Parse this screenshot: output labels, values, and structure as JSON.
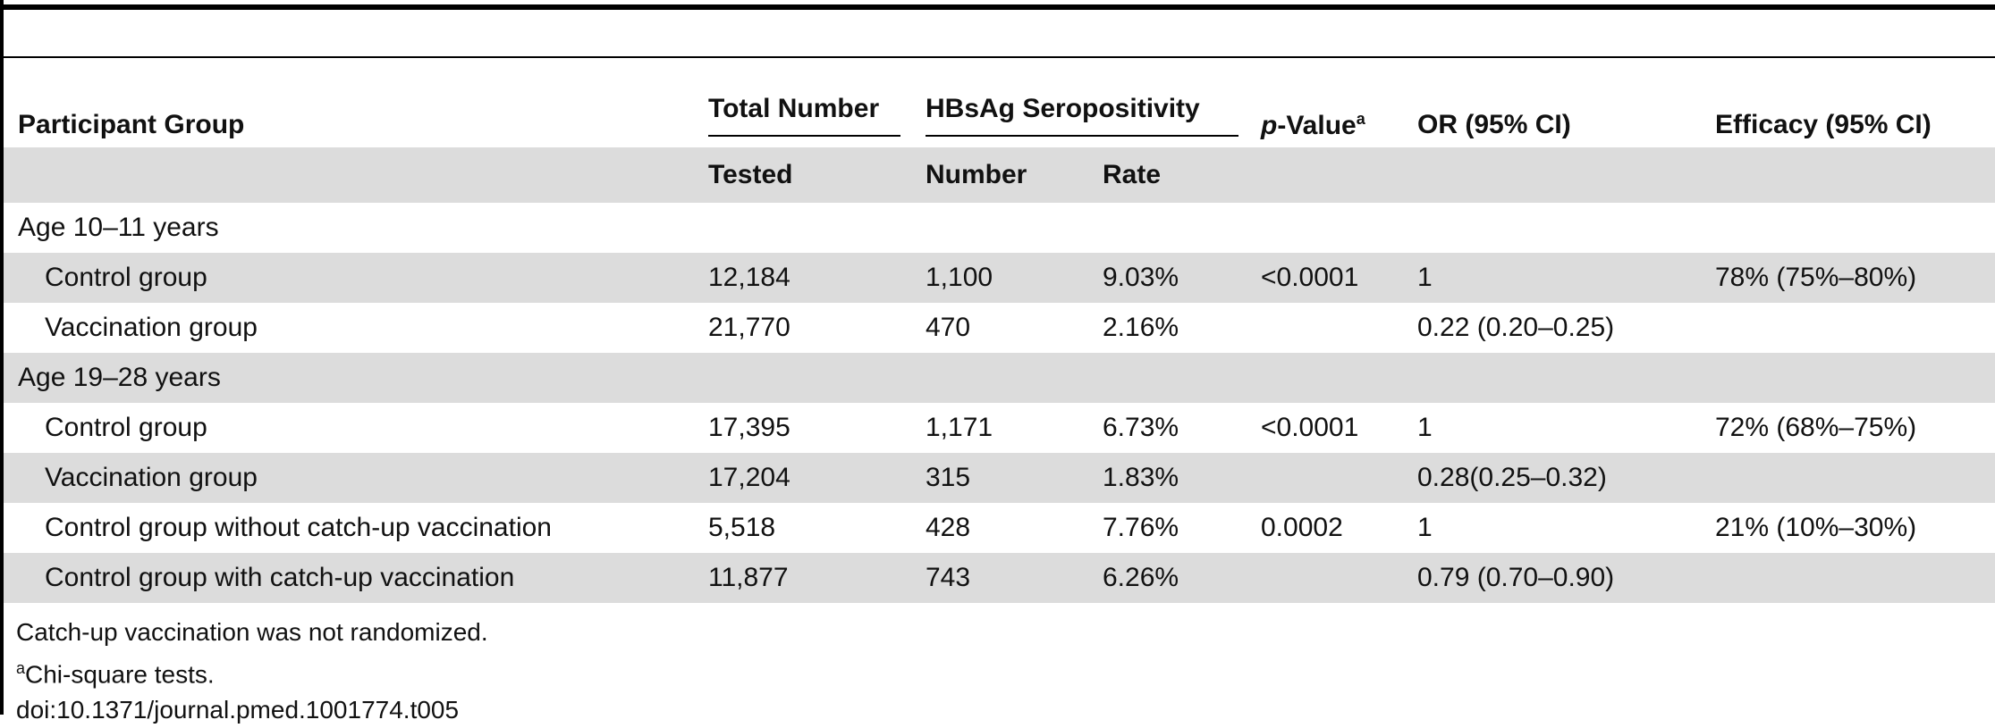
{
  "headers": {
    "participant_group": "Participant Group",
    "total_number": "Total Number",
    "tested": "Tested",
    "hbsag_seropositivity": "HBsAg Seropositivity",
    "number": "Number",
    "rate": "Rate",
    "p_value_prefix": "p",
    "p_value_suffix": "-Value",
    "p_value_sup": "a",
    "or": "OR (95% CI)",
    "efficacy": "Efficacy (95% CI)"
  },
  "sections": [
    {
      "label": "Age 10–11 years",
      "rows": [
        {
          "group": "Control group",
          "tested": "12,184",
          "number": "1,100",
          "rate": "9.03%",
          "p": "<0.0001",
          "or": "1",
          "efficacy": "78% (75%–80%)"
        },
        {
          "group": "Vaccination group",
          "tested": "21,770",
          "number": "470",
          "rate": "2.16%",
          "p": "",
          "or": "0.22 (0.20–0.25)",
          "efficacy": ""
        }
      ]
    },
    {
      "label": "Age 19–28 years",
      "rows": [
        {
          "group": "Control group",
          "tested": "17,395",
          "number": "1,171",
          "rate": "6.73%",
          "p": "<0.0001",
          "or": "1",
          "efficacy": "72% (68%–75%)"
        },
        {
          "group": "Vaccination group",
          "tested": "17,204",
          "number": "315",
          "rate": "1.83%",
          "p": "",
          "or": "0.28(0.25–0.32)",
          "efficacy": ""
        },
        {
          "group": "Control group without catch-up vaccination",
          "tested": "5,518",
          "number": "428",
          "rate": "7.76%",
          "p": "0.0002",
          "or": "1",
          "efficacy": "21% (10%–30%)"
        },
        {
          "group": "Control group with catch-up vaccination",
          "tested": "11,877",
          "number": "743",
          "rate": "6.26%",
          "p": "",
          "or": "0.79 (0.70–0.90)",
          "efficacy": ""
        }
      ]
    }
  ],
  "notes": {
    "line1": "Catch-up vaccination was not randomized.",
    "line2_sup": "a",
    "line2": "Chi-square tests.",
    "doi": "doi:10.1371/journal.pmed.1001774.t005"
  }
}
